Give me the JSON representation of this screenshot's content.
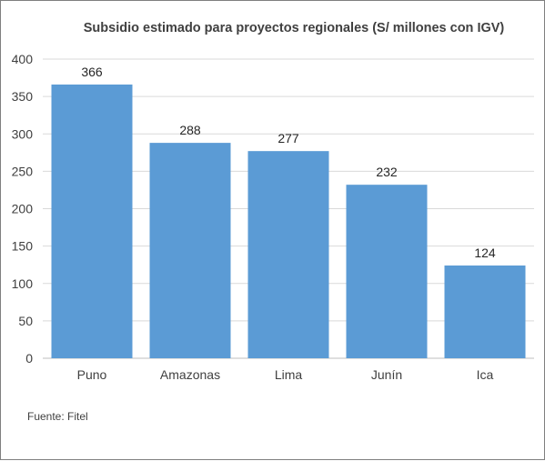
{
  "chart_data": {
    "type": "bar",
    "title": "Subsidio estimado para proyectos regionales (S/ millones con IGV)",
    "categories": [
      "Puno",
      "Amazonas",
      "Lima",
      "Junín",
      "Ica"
    ],
    "values": [
      366,
      288,
      277,
      232,
      124
    ],
    "data_labels": [
      "366",
      "288",
      "277",
      "232",
      "124"
    ],
    "y_ticks": [
      "0",
      "50",
      "100",
      "150",
      "200",
      "250",
      "300",
      "350",
      "400"
    ],
    "ylim": [
      0,
      400
    ],
    "xlabel": "",
    "ylabel": "",
    "grid": true,
    "legend": "none",
    "bar_color": "#5b9bd5",
    "grid_color": "#d9d9d9"
  },
  "source": "Fuente: Fitel"
}
